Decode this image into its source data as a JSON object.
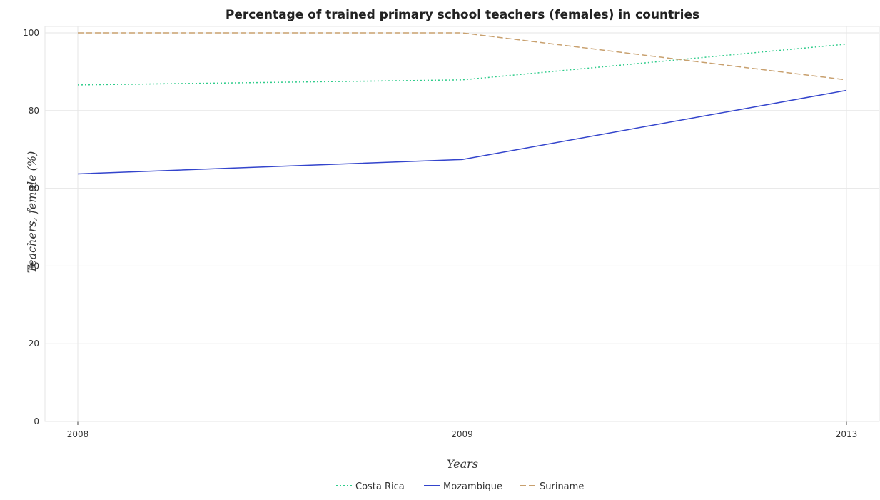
{
  "chart_data": {
    "type": "line",
    "title": "Percentage of trained primary school teachers (females) in countries",
    "xlabel": "Years",
    "ylabel": "Teachers, female (%)",
    "categories": [
      "2008",
      "2009",
      "2013"
    ],
    "ylim": [
      0,
      100
    ],
    "yticks": [
      "0",
      "20",
      "40",
      "60",
      "80",
      "100"
    ],
    "grid": true,
    "legend_position": "bottom-center",
    "series": [
      {
        "name": "Costa Rica",
        "color": "#2ecc8a",
        "style": "dotted",
        "values": [
          86.6,
          87.9,
          97.1
        ]
      },
      {
        "name": "Mozambique",
        "color": "#3344cc",
        "style": "solid",
        "values": [
          63.7,
          67.4,
          85.2
        ]
      },
      {
        "name": "Suriname",
        "color": "#c8a06e",
        "style": "dashed",
        "values": [
          100,
          100,
          87.9
        ]
      }
    ]
  }
}
